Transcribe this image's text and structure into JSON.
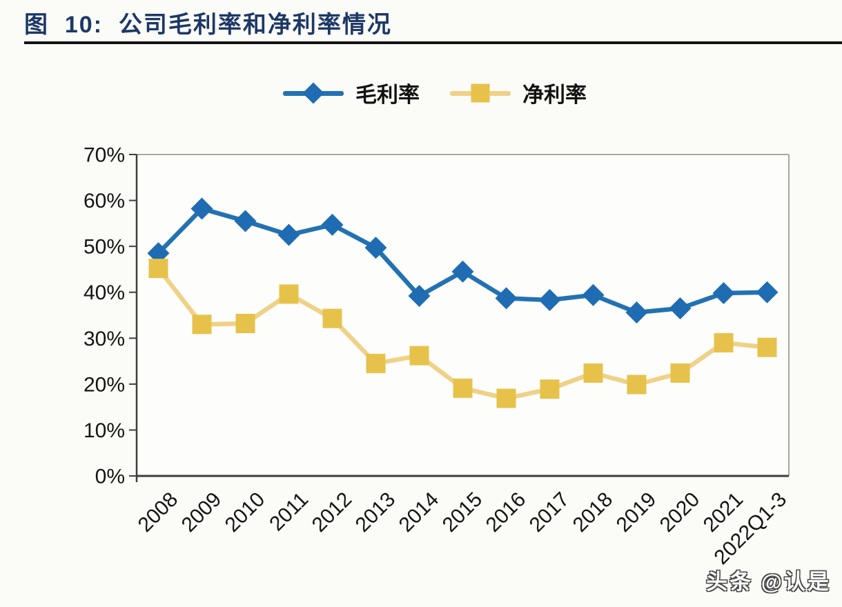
{
  "page": {
    "title": "图  10:  公司毛利率和净利率情况",
    "watermark": "头条 @认是"
  },
  "chart_data": {
    "type": "line",
    "title": "公司毛利率和净利率情况",
    "categories": [
      "2008",
      "2009",
      "2010",
      "2011",
      "2012",
      "2013",
      "2014",
      "2015",
      "2016",
      "2017",
      "2018",
      "2019",
      "2020",
      "2021",
      "2022Q1-3"
    ],
    "series": [
      {
        "name": "毛利率",
        "marker": "diamond",
        "color": "#1F6CB2",
        "line_color": "#2272B2",
        "values": [
          48.5,
          58.2,
          55.5,
          52.5,
          54.7,
          49.7,
          39.2,
          44.5,
          38.7,
          38.3,
          39.4,
          35.6,
          36.5,
          39.8,
          40.0
        ]
      },
      {
        "name": "净利率",
        "marker": "square",
        "color": "#E7C24A",
        "line_color": "#EFD187",
        "values": [
          45.2,
          33.0,
          33.2,
          39.6,
          34.3,
          24.5,
          26.2,
          19.1,
          16.9,
          18.9,
          22.4,
          19.9,
          22.4,
          29.0,
          28.0
        ]
      }
    ],
    "ylim": [
      0,
      70
    ],
    "ytick_step": 10,
    "ytick_suffix": "%",
    "xlabel": "",
    "ylabel": "",
    "legend_position": "top",
    "grid": false,
    "x_label_rotation": -45
  },
  "colors": {
    "title_navy": "#1D3866",
    "axis_dark": "#3d3d3d",
    "frame_gray": "#A6A6A6",
    "rule_black": "#141414"
  }
}
